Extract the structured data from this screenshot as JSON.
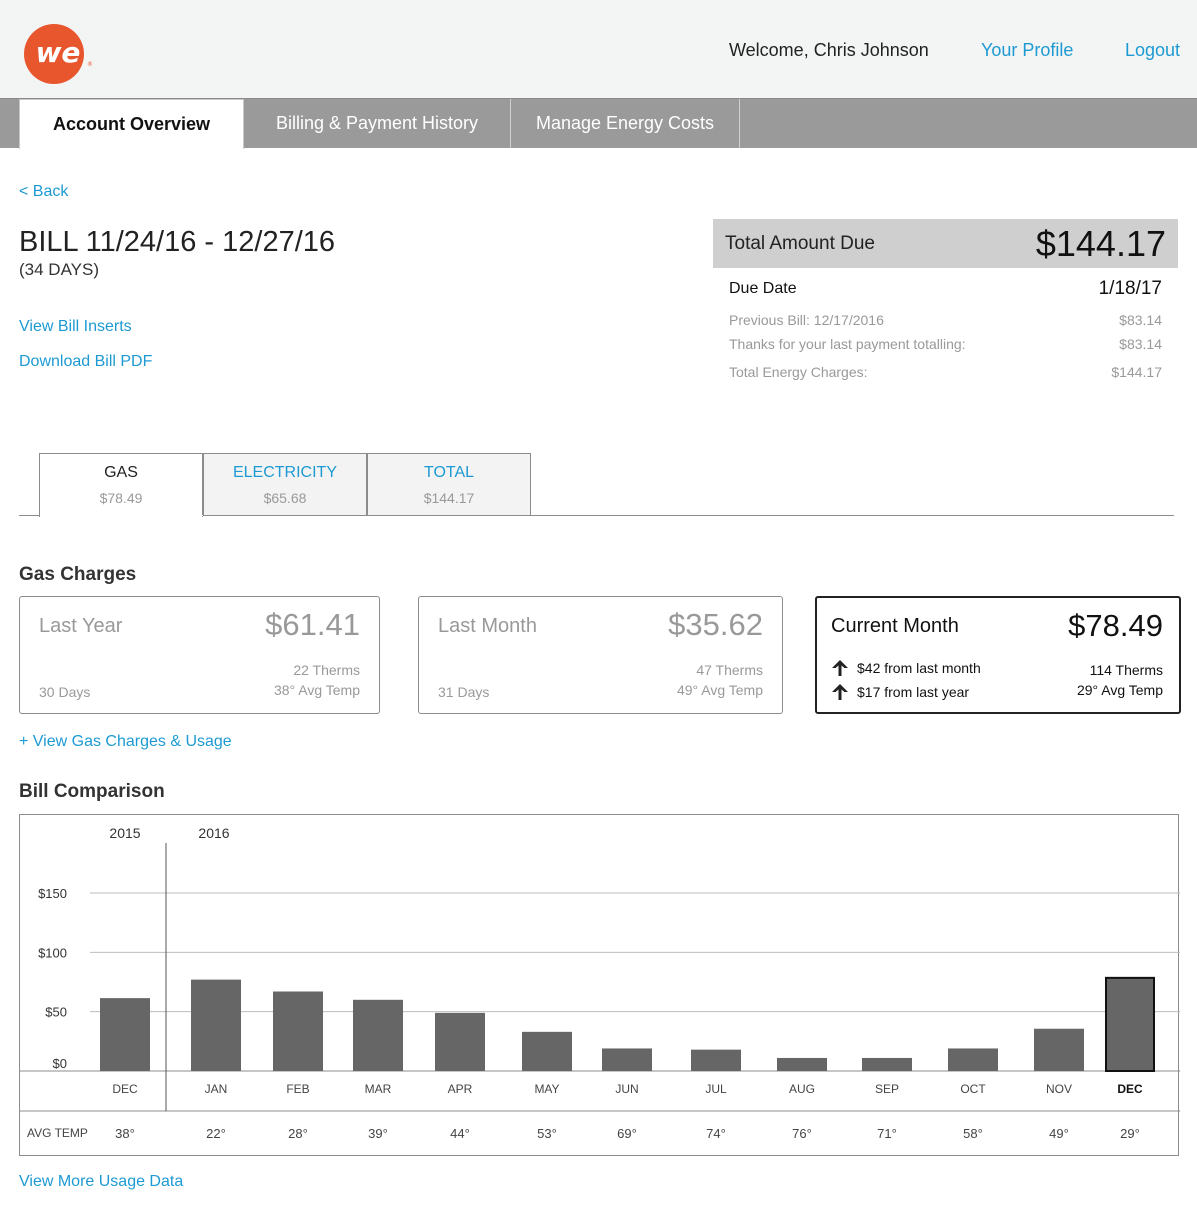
{
  "header": {
    "logo_text": "we",
    "logo_color": "#e8562e",
    "welcome": "Welcome, Chris Johnson",
    "profile_link": "Your Profile",
    "logout_link": "Logout"
  },
  "nav": {
    "tabs": [
      {
        "label": "Account Overview",
        "active": true
      },
      {
        "label": "Billing & Payment History",
        "active": false
      },
      {
        "label": "Manage Energy Costs",
        "active": false
      }
    ]
  },
  "bill": {
    "back": "< Back",
    "title": "BILL 11/24/16 - 12/27/16",
    "days": "(34 DAYS)",
    "view_inserts": "View Bill Inserts",
    "download_pdf": "Download Bill PDF"
  },
  "summary": {
    "total_label": "Total Amount Due",
    "total_amount": "$144.17",
    "due_date_label": "Due Date",
    "due_date": "1/18/17",
    "previous_bill_label": "Previous Bill: 12/17/2016",
    "previous_bill": "$83.14",
    "last_payment_label": "Thanks for your last payment totalling:",
    "last_payment": "$83.14",
    "energy_charges_label": "Total Energy Charges:",
    "energy_charges": "$144.17"
  },
  "utility_tabs": [
    {
      "label": "GAS",
      "value": "$78.49",
      "active": true
    },
    {
      "label": "ELECTRICITY",
      "value": "$65.68",
      "active": false
    },
    {
      "label": "TOTAL",
      "value": "$144.17",
      "active": false
    }
  ],
  "gas_charges": {
    "title": "Gas Charges",
    "last_year": {
      "label": "Last Year",
      "amount": "$61.41",
      "therms": "22 Therms",
      "temp": "38° Avg Temp",
      "days": "30 Days"
    },
    "last_month": {
      "label": "Last Month",
      "amount": "$35.62",
      "therms": "47 Therms",
      "temp": "49° Avg Temp",
      "days": "31 Days"
    },
    "current_month": {
      "label": "Current Month",
      "amount": "$78.49",
      "therms": "114 Therms",
      "temp": "29° Avg Temp",
      "change_month": "$42 from last month",
      "change_year": "$17 from last year"
    },
    "view_link": "+ View Gas Charges & Usage"
  },
  "comparison": {
    "title": "Bill Comparison",
    "view_more": "View More Usage Data"
  },
  "chart_data": {
    "type": "bar",
    "year_labels": [
      "2015",
      "2016"
    ],
    "categories": [
      "DEC",
      "JAN",
      "FEB",
      "MAR",
      "APR",
      "MAY",
      "JUN",
      "JUL",
      "AUG",
      "SEP",
      "OCT",
      "NOV",
      "DEC"
    ],
    "values": [
      61.41,
      77,
      67,
      60,
      49,
      33,
      19,
      18,
      11,
      11,
      19,
      35.62,
      78.49
    ],
    "highlight_index": 12,
    "y_ticks": [
      0,
      50,
      100,
      150
    ],
    "y_tick_labels": [
      "$0",
      "$50",
      "$100",
      "$150"
    ],
    "ylim": [
      0,
      150
    ],
    "temp_label": "AVG TEMP",
    "avg_temps": [
      "38°",
      "22°",
      "28°",
      "39°",
      "44°",
      "53°",
      "69°",
      "74°",
      "76°",
      "71°",
      "58°",
      "49°",
      "29°"
    ],
    "bar_color": "#666666",
    "grid": true
  }
}
